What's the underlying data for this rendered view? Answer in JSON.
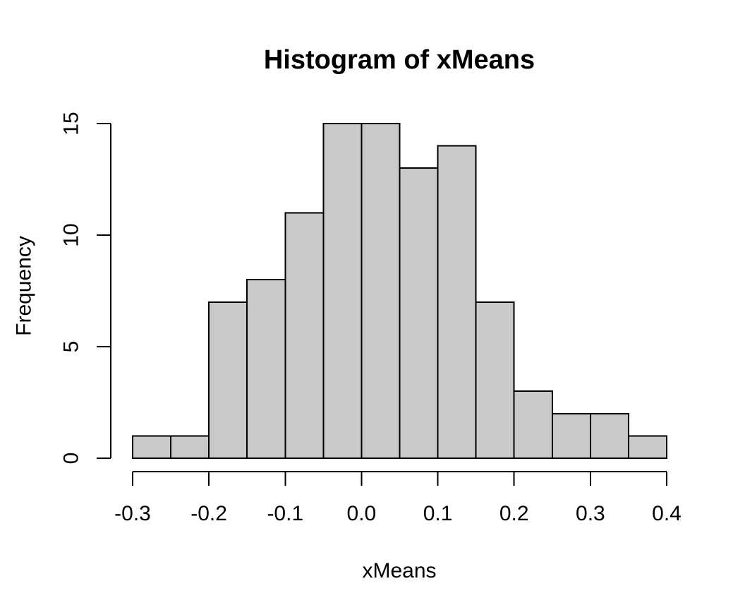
{
  "chart_data": {
    "type": "bar",
    "subtype": "histogram",
    "title": "Histogram of xMeans",
    "xlabel": "xMeans",
    "ylabel": "Frequency",
    "bin_edges": [
      -0.3,
      -0.25,
      -0.2,
      -0.15,
      -0.1,
      -0.05,
      0.0,
      0.05,
      0.1,
      0.15,
      0.2,
      0.25,
      0.3,
      0.35,
      0.4
    ],
    "values": [
      1,
      1,
      7,
      8,
      11,
      15,
      15,
      13,
      14,
      7,
      3,
      2,
      2,
      1
    ],
    "x_ticks": [
      {
        "value": -0.3,
        "label": "-0.3"
      },
      {
        "value": -0.2,
        "label": "-0.2"
      },
      {
        "value": -0.1,
        "label": "-0.1"
      },
      {
        "value": 0.0,
        "label": "0.0"
      },
      {
        "value": 0.1,
        "label": "0.1"
      },
      {
        "value": 0.2,
        "label": "0.2"
      },
      {
        "value": 0.3,
        "label": "0.3"
      },
      {
        "value": 0.4,
        "label": "0.4"
      }
    ],
    "y_ticks": [
      {
        "value": 0,
        "label": "0"
      },
      {
        "value": 5,
        "label": "5"
      },
      {
        "value": 10,
        "label": "10"
      },
      {
        "value": 15,
        "label": "15"
      }
    ],
    "xlim": [
      -0.3,
      0.4
    ],
    "ylim": [
      0,
      15
    ],
    "grid": false,
    "legend": null,
    "colors": {
      "bar_fill": "#c9c9c9",
      "bar_border": "#000000",
      "axis": "#000000",
      "text": "#000000",
      "background": "#ffffff"
    }
  }
}
